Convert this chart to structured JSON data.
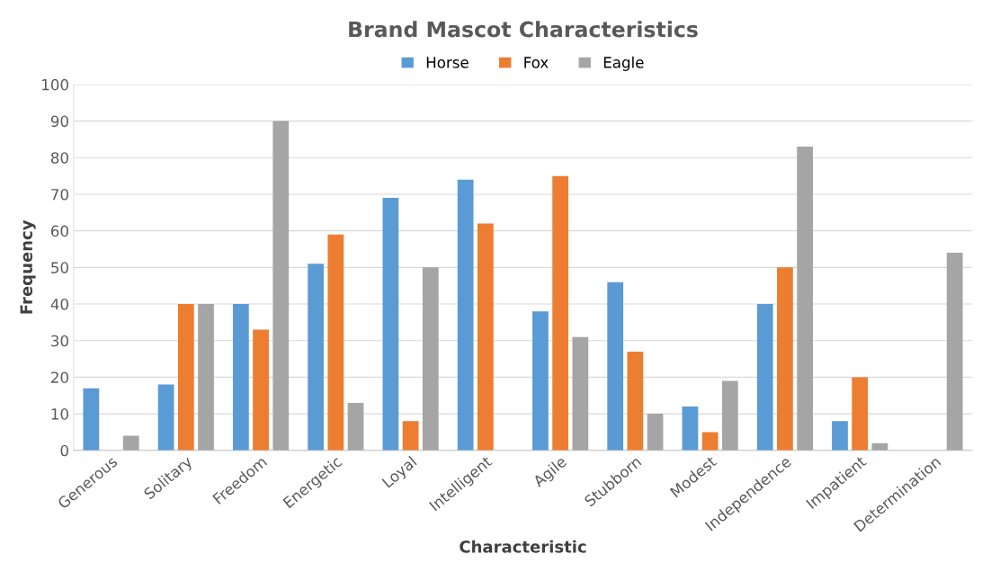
{
  "chart_data": {
    "type": "bar",
    "title": "Brand Mascot Characteristics",
    "xlabel": "Characteristic",
    "ylabel": "Frequency",
    "categories": [
      "Generous",
      "Solitary",
      "Freedom",
      "Energetic",
      "Loyal",
      "Intelligent",
      "Agile",
      "Stubborn",
      "Modest",
      "Independence",
      "Impatient",
      "Determination"
    ],
    "series": [
      {
        "name": "Horse",
        "color": "#5b9bd5",
        "values": [
          17,
          18,
          40,
          51,
          69,
          74,
          38,
          46,
          12,
          40,
          8,
          0
        ]
      },
      {
        "name": "Fox",
        "color": "#ed7d31",
        "values": [
          0,
          40,
          33,
          59,
          8,
          62,
          75,
          27,
          5,
          50,
          20,
          0
        ]
      },
      {
        "name": "Eagle",
        "color": "#a5a5a5",
        "values": [
          4,
          40,
          90,
          13,
          50,
          0,
          31,
          10,
          19,
          83,
          2,
          54
        ]
      }
    ],
    "ylim": [
      0,
      100
    ],
    "yticks": [
      0,
      10,
      20,
      30,
      40,
      50,
      60,
      70,
      80,
      90,
      100
    ],
    "grid": "y",
    "legend": "top"
  }
}
